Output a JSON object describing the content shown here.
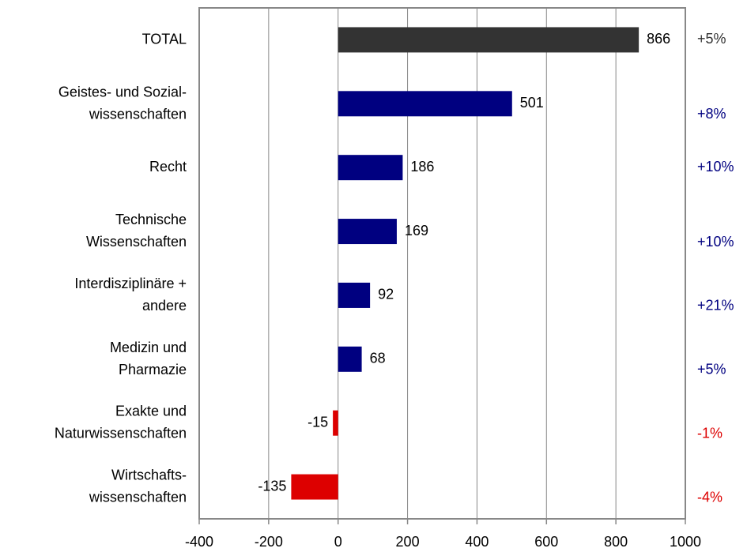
{
  "chart_data": {
    "type": "bar",
    "orientation": "horizontal",
    "categories": [
      "TOTAL",
      "Geistes- und Sozial-\nwissenschaften",
      "Recht",
      "Technische\nWissenschaften",
      "Interdisziplinäre +\nandere",
      "Medizin und\nPharmazie",
      "Exakte und\nNaturwissenschaften",
      "Wirtschafts-\nwissenschaften"
    ],
    "values": [
      866,
      501,
      186,
      169,
      92,
      68,
      -15,
      -135
    ],
    "colors": [
      "#333333",
      "#000080",
      "#000080",
      "#000080",
      "#000080",
      "#000080",
      "#dd0000",
      "#dd0000"
    ],
    "changes": [
      "+5%",
      "+8%",
      "+10%",
      "+10%",
      "+21%",
      "+5%",
      "-1%",
      "-4%"
    ],
    "xlim": [
      -400,
      1000
    ],
    "xticks": [
      -400,
      -200,
      0,
      200,
      400,
      600,
      800,
      1000
    ],
    "grid": true
  }
}
